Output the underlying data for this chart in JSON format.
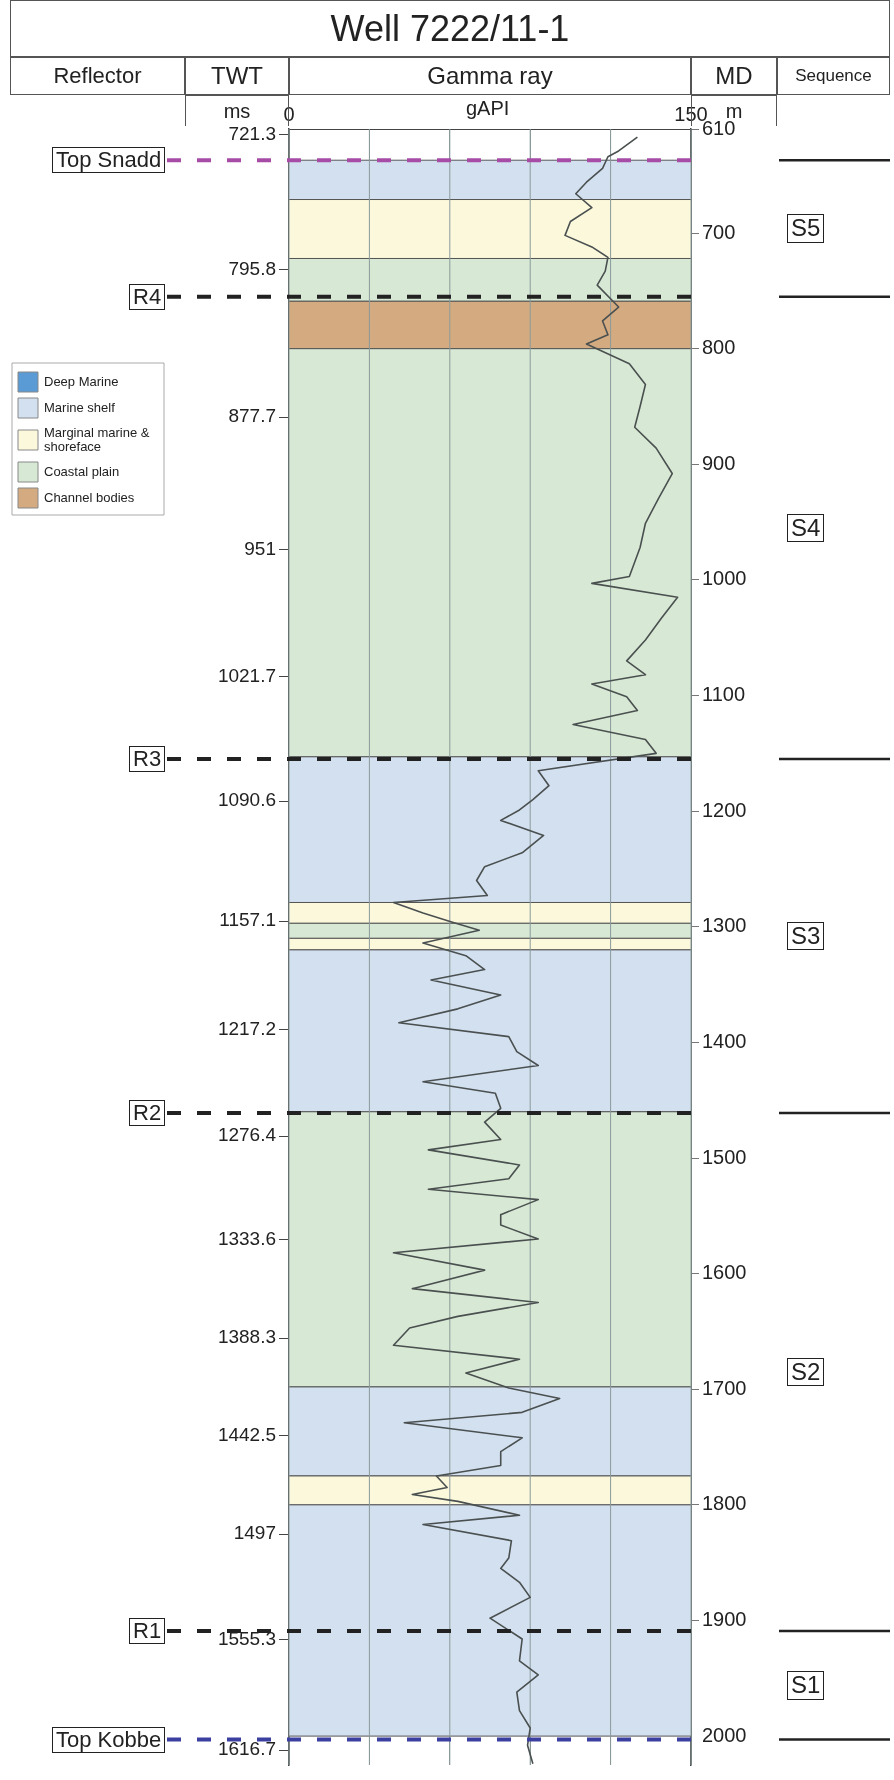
{
  "chart_data": {
    "type": "line",
    "title": "Well 7222/11-1",
    "subtitle": "Gamma ray",
    "xlabel": "gAPI",
    "ylabel": "MD",
    "y2label": "TWT",
    "annotations": [
      "Reflector",
      "Sequence",
      "ms",
      "m",
      "S5",
      "S4",
      "S3",
      "S2",
      "S1"
    ],
    "xlim": [
      0,
      150
    ],
    "xticks": [
      0,
      {
        "value": 30,
        "label": null
      },
      {
        "value": 60,
        "label": null
      },
      {
        "value": 90,
        "label": null
      },
      {
        "value": 120,
        "label": null
      },
      150
    ],
    "ylim": [
      2025,
      610
    ],
    "yticks": [
      610,
      700,
      800,
      900,
      1000,
      1100,
      1200,
      1300,
      1400,
      1500,
      1600,
      1700,
      1800,
      1900,
      2000
    ],
    "y2lim": [
      1625,
      718
    ],
    "y2ticks": [
      721.3,
      795.8,
      877.7,
      951,
      1021.7,
      1090.6,
      1157.1,
      1217.2,
      1276.4,
      1333.6,
      1388.3,
      1442.5,
      1497,
      1555.3,
      1616.7
    ],
    "grid": true,
    "legend": "left",
    "series": [
      {
        "color": "#4a5050",
        "x": [
          130,
          123,
          119,
          117,
          111,
          107,
          113,
          105,
          103,
          113,
          119,
          118,
          115,
          123,
          117,
          119,
          111,
          127,
          133,
          131,
          129,
          137,
          143,
          138,
          133,
          131,
          127,
          113,
          145,
          139,
          133,
          126,
          133,
          113,
          126,
          130,
          106,
          133,
          137,
          93,
          97,
          91,
          86,
          79,
          95,
          87,
          73,
          70,
          74,
          39,
          50,
          61,
          71,
          50,
          66,
          73,
          53,
          79,
          63,
          41,
          82,
          85,
          93,
          50,
          77,
          79,
          73,
          79,
          52,
          86,
          82,
          52,
          93,
          79,
          79,
          93,
          39,
          73,
          46,
          93,
          63,
          45,
          39,
          86,
          66,
          82,
          101,
          87,
          43,
          87,
          79,
          79,
          55,
          59,
          46,
          63,
          86,
          50,
          83,
          82,
          79,
          86,
          90,
          75,
          87,
          86,
          93,
          85,
          86,
          90,
          89,
          91
        ],
        "values": [
          617,
          629,
          634,
          644,
          656,
          666,
          678,
          690,
          702,
          712,
          721,
          733,
          745,
          764,
          776,
          788,
          796,
          813,
          831,
          850,
          868,
          886,
          908,
          929,
          951,
          972,
          997,
          1003,
          1015,
          1033,
          1052,
          1070,
          1082,
          1090,
          1101,
          1113,
          1125,
          1138,
          1150,
          1165,
          1178,
          1190,
          1199,
          1208,
          1221,
          1236,
          1248,
          1260,
          1273,
          1279,
          1288,
          1296,
          1303,
          1314,
          1325,
          1337,
          1346,
          1359,
          1371,
          1383,
          1395,
          1408,
          1420,
          1434,
          1444,
          1457,
          1469,
          1484,
          1493,
          1506,
          1518,
          1527,
          1536,
          1549,
          1558,
          1570,
          1582,
          1597,
          1613,
          1625,
          1637,
          1647,
          1662,
          1674,
          1686,
          1699,
          1708,
          1720,
          1729,
          1742,
          1754,
          1766,
          1775,
          1785,
          1791,
          1797,
          1809,
          1817,
          1831,
          1846,
          1855,
          1867,
          1880,
          1898,
          1916,
          1935,
          1947,
          1962,
          1978,
          1993,
          2008,
          2024
        ]
      },
      {
        "type": "area",
        "name": "Deep Marine",
        "color": "#5b9bd5"
      }
    ],
    "bands": [
      {
        "axis": "y",
        "from": 637,
        "to": 671,
        "label": "Marine shelf",
        "color": "#d3e0f0"
      },
      {
        "axis": "y",
        "from": 671,
        "to": 722,
        "label": "Marginal marine & shoreface",
        "color": "#fbf8dc"
      },
      {
        "axis": "y",
        "from": 722,
        "to": 759,
        "label": "Coastal plain",
        "color": "#d7e9d4"
      },
      {
        "axis": "y",
        "from": 759,
        "to": 800,
        "label": "Channel bodies",
        "color": "#d4aa80"
      },
      {
        "axis": "y",
        "from": 800,
        "to": 1153,
        "color": "#d7e9d4"
      },
      {
        "axis": "y",
        "from": 1153,
        "to": 1279,
        "color": "#d3e0f0"
      },
      {
        "axis": "y",
        "from": 1279,
        "to": 1297,
        "color": "#fbf8dc"
      },
      {
        "axis": "y",
        "from": 1297,
        "to": 1310,
        "color": "#d7e9d4"
      },
      {
        "axis": "y",
        "from": 1310,
        "to": 1320,
        "color": "#fbf8dc"
      },
      {
        "axis": "y",
        "from": 1320,
        "to": 1460,
        "color": "#d3e0f0"
      },
      {
        "axis": "y",
        "from": 1460,
        "to": 1698,
        "color": "#d7e9d4"
      },
      {
        "axis": "y",
        "from": 1698,
        "to": 1775,
        "color": "#d3e0f0"
      },
      {
        "axis": "y",
        "from": 1775,
        "to": 1800,
        "color": "#fbf8dc"
      },
      {
        "axis": "y",
        "from": 1800,
        "to": 2000,
        "color": "#d3e0f0"
      }
    ],
    "ref_lines": [
      {
        "axis": "y",
        "value": 637,
        "label": "Top Snadd",
        "color": "#a64ca6",
        "line_style": "dashed"
      },
      {
        "axis": "y",
        "value": 755,
        "label": "R4",
        "color": "#222222",
        "line_style": "dashed"
      },
      {
        "axis": "y",
        "value": 1155,
        "label": "R3",
        "color": "#222222",
        "line_style": "dashed"
      },
      {
        "axis": "y",
        "value": 1461,
        "label": "R2",
        "color": "#222222",
        "line_style": "dashed"
      },
      {
        "axis": "y",
        "value": 1909,
        "label": "R1",
        "color": "#222222",
        "line_style": "dashed"
      },
      {
        "axis": "y",
        "value": 2003,
        "label": "Top Kobbe",
        "color": "#3b3f9f",
        "line_style": "dashed"
      }
    ]
  }
}
